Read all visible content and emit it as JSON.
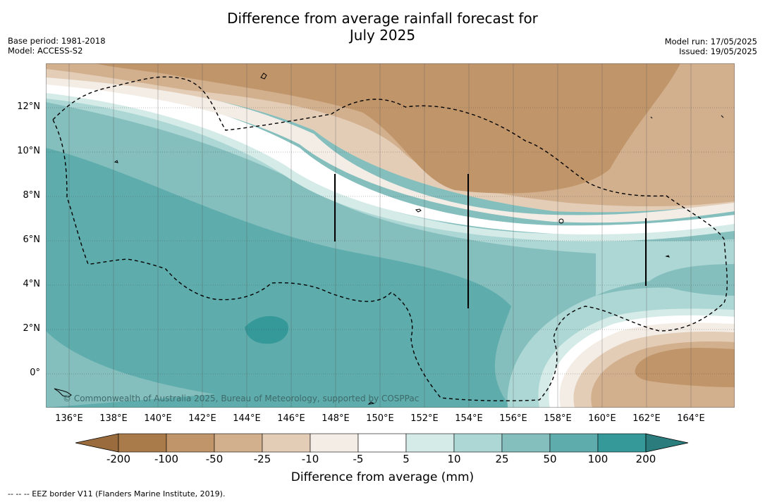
{
  "title": {
    "line1": "Difference from average rainfall forecast for",
    "line2": "July 2025"
  },
  "meta_left": {
    "base_period": "Base period: 1981-2018",
    "model": "Model: ACCESS-S2"
  },
  "meta_right": {
    "model_run": "Model run: 17/05/2025",
    "issued": "Issued: 19/05/2025"
  },
  "map": {
    "lon_labels": [
      "136°E",
      "138°E",
      "140°E",
      "142°E",
      "144°E",
      "146°E",
      "148°E",
      "150°E",
      "152°E",
      "154°E",
      "156°E",
      "158°E",
      "160°E",
      "162°E",
      "164°E"
    ],
    "lat_labels": [
      "12°N",
      "10°N",
      "8°N",
      "6°N",
      "4°N",
      "2°N",
      "0°"
    ],
    "copyright": "© Commonwealth of Australia 2025, Bureau of Meteorology, supported by COSPPac"
  },
  "colorbar": {
    "ticks": [
      "-200",
      "-100",
      "-50",
      "-25",
      "-10",
      "-5",
      "5",
      "10",
      "25",
      "50",
      "100",
      "200"
    ],
    "colors": [
      "#a97b4a",
      "#c1956a",
      "#d2b08d",
      "#e3cdb7",
      "#f4ede6",
      "#ffffff",
      "#d4ebe8",
      "#acd7d5",
      "#84bfbe",
      "#5eacac",
      "#35999a",
      "#2a8a89"
    ],
    "label": "Difference from average (mm)"
  },
  "footer": "--  --  -- EEZ border V11 (Flanders Marine Institute, 2019)."
}
